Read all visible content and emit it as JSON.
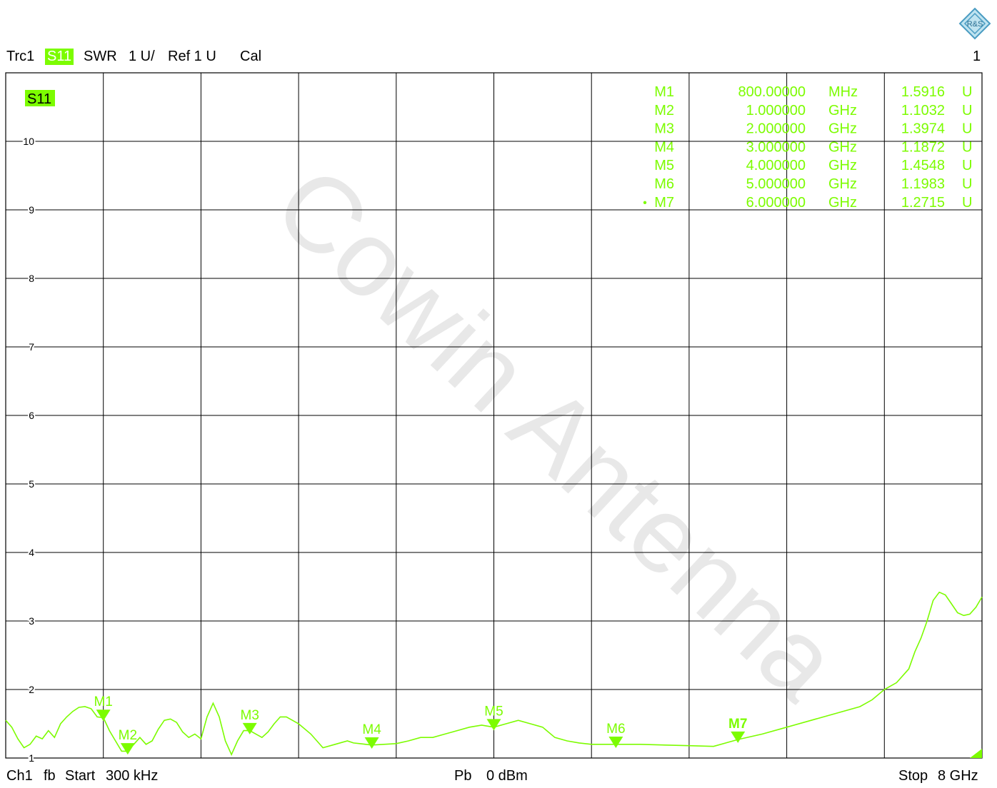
{
  "header": {
    "trace": "Trc1",
    "param": "S11",
    "format": "SWR",
    "scale": "1 U/",
    "ref": "Ref 1 U",
    "cal": "Cal",
    "window": "1"
  },
  "footer": {
    "channel": "Ch1",
    "fb": "fb",
    "start_label": "Start",
    "start_value": "300 kHz",
    "power_label": "Pb",
    "power_value": "0 dBm",
    "stop_label": "Stop",
    "stop_value": "8 GHz"
  },
  "watermark": "Cowin Antenna",
  "colors": {
    "trace": "#7cfc00",
    "grid": "#000000"
  },
  "chart_data": {
    "type": "line",
    "trace_label": "S11",
    "xlim": [
      0.0003,
      8.0
    ],
    "ylim": [
      1,
      11
    ],
    "x_unit": "GHz",
    "yticks": [
      1,
      2,
      3,
      4,
      5,
      6,
      7,
      8,
      9,
      10
    ],
    "grid": true,
    "series": [
      {
        "name": "S11",
        "x": [
          0.0003,
          0.05,
          0.1,
          0.15,
          0.2,
          0.25,
          0.3,
          0.35,
          0.4,
          0.45,
          0.5,
          0.55,
          0.6,
          0.65,
          0.7,
          0.75,
          0.8,
          0.85,
          0.9,
          0.95,
          1.0,
          1.05,
          1.1,
          1.15,
          1.2,
          1.25,
          1.3,
          1.35,
          1.4,
          1.45,
          1.5,
          1.55,
          1.6,
          1.65,
          1.7,
          1.75,
          1.8,
          1.85,
          1.9,
          1.95,
          2.0,
          2.05,
          2.1,
          2.15,
          2.2,
          2.25,
          2.3,
          2.35,
          2.4,
          2.5,
          2.6,
          2.7,
          2.8,
          2.85,
          2.9,
          2.95,
          3.0,
          3.1,
          3.2,
          3.3,
          3.4,
          3.5,
          3.6,
          3.7,
          3.8,
          3.9,
          4.0,
          4.1,
          4.2,
          4.3,
          4.4,
          4.5,
          4.6,
          4.7,
          4.8,
          4.9,
          5.0,
          5.2,
          5.4,
          5.6,
          5.8,
          6.0,
          6.2,
          6.4,
          6.6,
          6.8,
          7.0,
          7.1,
          7.2,
          7.3,
          7.4,
          7.45,
          7.5,
          7.55,
          7.6,
          7.65,
          7.7,
          7.75,
          7.8,
          7.85,
          7.9,
          7.95,
          8.0
        ],
        "values": [
          1.55,
          1.45,
          1.28,
          1.15,
          1.2,
          1.32,
          1.28,
          1.4,
          1.3,
          1.5,
          1.6,
          1.68,
          1.74,
          1.75,
          1.72,
          1.6,
          1.59,
          1.4,
          1.25,
          1.1,
          1.1,
          1.2,
          1.3,
          1.2,
          1.25,
          1.42,
          1.55,
          1.57,
          1.52,
          1.38,
          1.3,
          1.35,
          1.28,
          1.6,
          1.8,
          1.6,
          1.25,
          1.05,
          1.25,
          1.4,
          1.4,
          1.35,
          1.3,
          1.38,
          1.5,
          1.6,
          1.6,
          1.55,
          1.5,
          1.35,
          1.15,
          1.2,
          1.25,
          1.22,
          1.21,
          1.2,
          1.19,
          1.2,
          1.21,
          1.25,
          1.3,
          1.3,
          1.35,
          1.4,
          1.45,
          1.48,
          1.45,
          1.5,
          1.55,
          1.5,
          1.45,
          1.3,
          1.25,
          1.22,
          1.2,
          1.2,
          1.2,
          1.2,
          1.19,
          1.18,
          1.17,
          1.27,
          1.35,
          1.45,
          1.55,
          1.65,
          1.75,
          1.85,
          2.0,
          2.1,
          2.3,
          2.55,
          2.75,
          3.0,
          3.3,
          3.42,
          3.38,
          3.25,
          3.12,
          3.08,
          3.1,
          3.2,
          3.35
        ]
      }
    ],
    "markers": [
      {
        "label": "M1",
        "x": 0.8,
        "value": 1.5916,
        "stim": "800.00000",
        "unit": "MHz",
        "resp": "1.5916",
        "resp_unit": "U"
      },
      {
        "label": "M2",
        "x": 1.0,
        "value": 1.1032,
        "stim": "1.000000",
        "unit": "GHz",
        "resp": "1.1032",
        "resp_unit": "U"
      },
      {
        "label": "M3",
        "x": 2.0,
        "value": 1.3974,
        "stim": "2.000000",
        "unit": "GHz",
        "resp": "1.3974",
        "resp_unit": "U"
      },
      {
        "label": "M4",
        "x": 3.0,
        "value": 1.1872,
        "stim": "3.000000",
        "unit": "GHz",
        "resp": "1.1872",
        "resp_unit": "U"
      },
      {
        "label": "M5",
        "x": 4.0,
        "value": 1.4548,
        "stim": "4.000000",
        "unit": "GHz",
        "resp": "1.4548",
        "resp_unit": "U"
      },
      {
        "label": "M6",
        "x": 5.0,
        "value": 1.1983,
        "stim": "5.000000",
        "unit": "GHz",
        "resp": "1.1983",
        "resp_unit": "U"
      },
      {
        "label": "M7",
        "x": 6.0,
        "value": 1.2715,
        "stim": "6.000000",
        "unit": "GHz",
        "resp": "1.2715",
        "resp_unit": "U",
        "active": true
      }
    ]
  }
}
